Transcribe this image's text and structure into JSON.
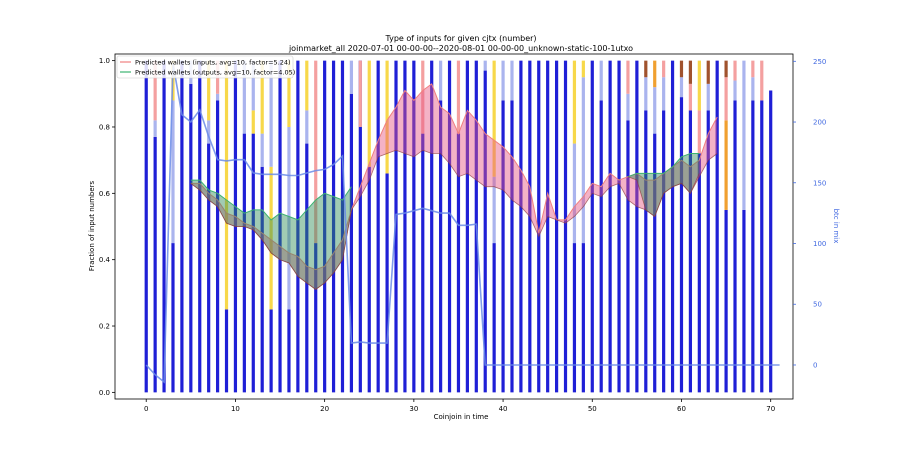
{
  "chart_data": {
    "type": "bar",
    "title": "Type of inputs for given cjtx (number)",
    "subtitle": "joinmarket_all 2020-07-01 00-00-00--2020-08-01 00-00-00_unknown-static-100-1utxo",
    "xlabel": "Coinjoin in time",
    "ylabel": "Fraction of input numbers",
    "y2label": "btc in mix",
    "xlim": [
      -3.5,
      72.5
    ],
    "ylim": [
      -0.02,
      1.02
    ],
    "y2lim": [
      -28,
      256
    ],
    "xticks": [
      "0",
      "10",
      "20",
      "30",
      "40",
      "50",
      "60",
      "70"
    ],
    "yticks": [
      "0.0",
      "0.2",
      "0.4",
      "0.6",
      "0.8",
      "1.0"
    ],
    "y2ticks": [
      "0",
      "50",
      "100",
      "150",
      "200",
      "250"
    ],
    "legend_position": "top-left",
    "legend": [
      {
        "label": "Predicted wallets (inputs, avg=10, factor=5.24)",
        "color": "#f08080"
      },
      {
        "label": "Predicted wallets (outputs, avg=10, factor=4.05)",
        "color": "#3cb371"
      }
    ],
    "bar_colors": {
      "base": "#1f1fd6",
      "light": "#aab4ee",
      "yellow": "#f7d84a",
      "pink": "#f4a0a0",
      "orange": "#f0a030",
      "brown": "#a0522d"
    },
    "bar_top": [
      1.0,
      0.77,
      1.0,
      0.45,
      1.0,
      0.93,
      1.0,
      0.75,
      0.88,
      0.25,
      1.0,
      0.78,
      0.78,
      0.68,
      0.25,
      1.0,
      0.25,
      1.0,
      0.75,
      0.45,
      1.0,
      1.0,
      1.0,
      0.9,
      1.0,
      0.68,
      1.0,
      0.66,
      1.0,
      1.0,
      1.0,
      0.78,
      1.0,
      0.88,
      1.0,
      0.78,
      1.0,
      1.0,
      0.97,
      0.45,
      0.88,
      0.88,
      1.0,
      1.0,
      1.0,
      1.0,
      1.0,
      1.0,
      0.45,
      0.45,
      1.0,
      0.88,
      1.0,
      1.0,
      0.82,
      1.0,
      0.85,
      0.78,
      0.85,
      1.0,
      0.89,
      0.85,
      0.72,
      0.85,
      1.0,
      0.55,
      0.88,
      0.55,
      0.88,
      0.88,
      0.91
    ],
    "overlay": [
      [
        {
          "c": "light",
          "to": 1.0
        }
      ],
      [
        {
          "c": "light",
          "to": 0.82
        },
        {
          "c": "pink",
          "to": 1.0
        }
      ],
      [],
      [
        {
          "c": "light",
          "to": 0.88
        },
        {
          "c": "yellow",
          "to": 1.0
        }
      ],
      [
        {
          "c": "light",
          "to": 0.95
        }
      ],
      [
        {
          "c": "light",
          "to": 1.0
        }
      ],
      [],
      [
        {
          "c": "light",
          "to": 0.82
        },
        {
          "c": "yellow",
          "to": 1.0
        }
      ],
      [
        {
          "c": "light",
          "to": 0.9
        },
        {
          "c": "pink",
          "to": 1.0
        }
      ],
      [
        {
          "c": "yellow",
          "to": 1.0
        }
      ],
      [],
      [
        {
          "c": "light",
          "to": 1.0
        }
      ],
      [
        {
          "c": "yellow",
          "to": 0.85
        },
        {
          "c": "light",
          "to": 1.0
        }
      ],
      [
        {
          "c": "light",
          "to": 0.78
        },
        {
          "c": "yellow",
          "to": 1.0
        }
      ],
      [
        {
          "c": "yellow",
          "to": 0.68
        },
        {
          "c": "light",
          "to": 1.0
        }
      ],
      [],
      [
        {
          "c": "light",
          "to": 0.8
        },
        {
          "c": "yellow",
          "to": 1.0
        }
      ],
      [],
      [
        {
          "c": "light",
          "to": 0.85
        },
        {
          "c": "yellow",
          "to": 1.0
        }
      ],
      [
        {
          "c": "pink",
          "to": 1.0
        }
      ],
      [],
      [
        {
          "c": "light",
          "to": 1.0
        }
      ],
      [],
      [
        {
          "c": "light",
          "to": 1.0
        }
      ],
      [
        {
          "c": "light",
          "to": 0.8
        },
        {
          "c": "pink",
          "to": 1.0
        }
      ],
      [
        {
          "c": "yellow",
          "to": 1.0
        }
      ],
      [
        {
          "c": "light",
          "to": 1.0
        }
      ],
      [
        {
          "c": "yellow",
          "to": 1.0
        }
      ],
      [],
      [],
      [],
      [
        {
          "c": "pink",
          "to": 1.0
        }
      ],
      [],
      [
        {
          "c": "light",
          "to": 1.0
        }
      ],
      [],
      [
        {
          "c": "pink",
          "to": 1.0
        }
      ],
      [],
      [],
      [
        {
          "c": "light",
          "to": 1.0
        }
      ],
      [
        {
          "c": "light",
          "to": 0.65
        },
        {
          "c": "yellow",
          "to": 1.0
        }
      ],
      [
        {
          "c": "light",
          "to": 1.0
        }
      ],
      [
        {
          "c": "light",
          "to": 1.0
        }
      ],
      [],
      [],
      [],
      [],
      [],
      [],
      [
        {
          "c": "light",
          "to": 0.75
        },
        {
          "c": "yellow",
          "to": 1.0
        }
      ],
      [
        {
          "c": "light",
          "to": 0.95
        },
        {
          "c": "yellow",
          "to": 1.0
        }
      ],
      [],
      [
        {
          "c": "light",
          "to": 1.0
        }
      ],
      [],
      [],
      [
        {
          "c": "light",
          "to": 0.9
        },
        {
          "c": "pink",
          "to": 1.0
        }
      ],
      [],
      [
        {
          "c": "light",
          "to": 0.95
        },
        {
          "c": "brown",
          "to": 1.0
        }
      ],
      [
        {
          "c": "light",
          "to": 0.92
        },
        {
          "c": "orange",
          "to": 1.0
        }
      ],
      [
        {
          "c": "light",
          "to": 0.95
        },
        {
          "c": "pink",
          "to": 1.0
        }
      ],
      [],
      [
        {
          "c": "light",
          "to": 0.95
        },
        {
          "c": "brown",
          "to": 1.0
        }
      ],
      [
        {
          "c": "pink",
          "to": 0.93
        },
        {
          "c": "brown",
          "to": 1.0
        }
      ],
      [
        {
          "c": "pink",
          "to": 0.85
        },
        {
          "c": "yellow",
          "to": 1.0
        }
      ],
      [
        {
          "c": "light",
          "to": 0.93
        },
        {
          "c": "brown",
          "to": 1.0
        }
      ],
      [],
      [
        {
          "c": "orange",
          "to": 0.82
        },
        {
          "c": "pink",
          "to": 0.95
        },
        {
          "c": "brown",
          "to": 1.0
        }
      ],
      [
        {
          "c": "light",
          "to": 0.94
        },
        {
          "c": "pink",
          "to": 1.0
        }
      ],
      [
        {
          "c": "light",
          "to": 1.0
        }
      ],
      [
        {
          "c": "light",
          "to": 0.95
        },
        {
          "c": "pink",
          "to": 1.0
        }
      ],
      [
        {
          "c": "pink",
          "to": 1.0
        }
      ],
      []
    ],
    "series": [
      {
        "name": "Predicted wallets (inputs, avg=10, factor=5.24)",
        "color": "#f08080",
        "fill": "#e75480",
        "x": [
          5,
          6,
          7,
          8,
          9,
          10,
          11,
          12,
          13,
          14,
          15,
          16,
          17,
          18,
          19,
          20,
          21,
          22,
          23,
          24,
          25,
          26,
          27,
          28,
          29,
          30,
          31,
          32,
          33,
          34,
          35,
          36,
          37,
          38,
          39,
          40,
          41,
          42,
          43,
          44,
          45,
          46,
          47,
          48,
          49,
          50,
          51,
          52,
          53,
          54,
          55,
          56,
          57,
          58,
          59,
          60,
          61,
          62,
          63,
          64
        ],
        "upper": [
          0.63,
          0.63,
          0.6,
          0.58,
          0.54,
          0.53,
          0.51,
          0.5,
          0.48,
          0.46,
          0.44,
          0.42,
          0.41,
          0.38,
          0.37,
          0.38,
          0.42,
          0.46,
          0.55,
          0.62,
          0.69,
          0.76,
          0.82,
          0.86,
          0.91,
          0.88,
          0.91,
          0.93,
          0.86,
          0.84,
          0.78,
          0.85,
          0.82,
          0.78,
          0.76,
          0.74,
          0.71,
          0.67,
          0.62,
          0.48,
          0.6,
          0.52,
          0.52,
          0.56,
          0.59,
          0.63,
          0.62,
          0.66,
          0.64,
          0.65,
          0.66,
          0.64,
          0.64,
          0.66,
          0.68,
          0.7,
          0.68,
          0.7,
          0.78,
          0.83
        ],
        "lower": [
          0.63,
          0.61,
          0.58,
          0.56,
          0.51,
          0.5,
          0.5,
          0.49,
          0.46,
          0.42,
          0.4,
          0.39,
          0.35,
          0.33,
          0.31,
          0.33,
          0.36,
          0.4,
          0.55,
          0.59,
          0.64,
          0.71,
          0.72,
          0.73,
          0.72,
          0.71,
          0.73,
          0.72,
          0.72,
          0.69,
          0.65,
          0.66,
          0.64,
          0.62,
          0.62,
          0.61,
          0.58,
          0.56,
          0.53,
          0.47,
          0.53,
          0.52,
          0.51,
          0.53,
          0.56,
          0.6,
          0.59,
          0.62,
          0.63,
          0.58,
          0.56,
          0.55,
          0.53,
          0.6,
          0.62,
          0.63,
          0.6,
          0.65,
          0.7,
          0.72
        ]
      },
      {
        "name": "Predicted wallets (outputs, avg=10, factor=4.05)",
        "color": "#3cb371",
        "fill": "#2e8b57",
        "x": [
          5,
          6,
          7,
          8,
          9,
          10,
          11,
          12,
          13,
          14,
          15,
          16,
          17,
          18,
          19,
          20,
          21,
          22,
          23
        ],
        "upper": [
          0.64,
          0.64,
          0.61,
          0.6,
          0.58,
          0.56,
          0.54,
          0.55,
          0.55,
          0.52,
          0.54,
          0.53,
          0.52,
          0.55,
          0.58,
          0.6,
          0.59,
          0.58,
          0.62
        ],
        "lower": [
          0.63,
          0.61,
          0.58,
          0.56,
          0.51,
          0.5,
          0.5,
          0.49,
          0.46,
          0.42,
          0.4,
          0.39,
          0.35,
          0.33,
          0.31,
          0.33,
          0.36,
          0.4,
          0.55
        ]
      },
      {
        "name": "",
        "color": "#3cb371",
        "fill": "#2e8b57",
        "x": [
          54,
          55,
          56,
          57,
          58,
          59,
          60,
          61,
          62
        ],
        "upper": [
          0.65,
          0.66,
          0.66,
          0.66,
          0.66,
          0.68,
          0.71,
          0.72,
          0.72
        ],
        "lower": [
          0.65,
          0.64,
          0.55,
          0.53,
          0.6,
          0.62,
          0.63,
          0.6,
          0.66
        ]
      },
      {
        "name": "btc in mix",
        "color": "#6a8be8",
        "axis": "right",
        "x": [
          0,
          1,
          2,
          3,
          4,
          5,
          6,
          7,
          8,
          9,
          10,
          11,
          12,
          13,
          14,
          15,
          16,
          17,
          18,
          19,
          20,
          21,
          22,
          23,
          24,
          25,
          26,
          27,
          28,
          29,
          30,
          31,
          32,
          33,
          34,
          35,
          36,
          37,
          38,
          39,
          40,
          41,
          42,
          43,
          44,
          45,
          46,
          47,
          48,
          49,
          50,
          51,
          52,
          53,
          54,
          55,
          56,
          57,
          58,
          59,
          60,
          61,
          62,
          63,
          64,
          65,
          66,
          67,
          68,
          69,
          70,
          71
        ],
        "y": [
          0,
          -8,
          -14,
          248,
          206,
          200,
          210,
          188,
          169,
          168,
          169,
          169,
          158,
          157,
          157,
          157,
          156,
          156,
          158,
          160,
          161,
          165,
          172,
          18,
          19,
          18,
          18,
          18,
          124,
          125,
          127,
          129,
          127,
          125,
          125,
          115,
          115,
          116,
          0,
          0,
          0,
          0,
          0,
          0,
          0,
          0,
          0,
          0,
          0,
          0,
          0,
          0,
          0,
          0,
          0,
          0,
          0,
          0,
          0,
          0,
          0,
          0,
          0,
          0,
          0,
          0,
          0,
          0,
          0,
          0,
          0,
          0
        ]
      }
    ]
  }
}
